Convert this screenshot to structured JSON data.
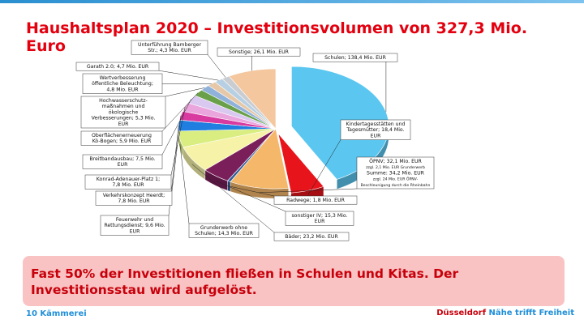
{
  "title": "Haushaltsplan 2020 – Investitionsvolumen von 327,3 Mio. Euro",
  "callout": "Fast 50% der Investitionen fließen in Schulen und Kitas. Der Investitionsstau wird aufgelöst.",
  "footer": {
    "page_label": "10 Kämmerei",
    "city": "Düsseldorf",
    "slogan": "Nähe trifft Freiheit"
  },
  "colors": {
    "accent_red": "#e3000f",
    "accent_blue": "#1f8fd8",
    "callout_bg": "#f9c3c3"
  },
  "chart_data": {
    "type": "pie",
    "unit": "Mio. EUR",
    "slices": [
      {
        "name": "Schulen",
        "value": 138.4,
        "color": "#5bc7f0",
        "label_lines": [
          "Schulen; 138,4 Mio. EUR"
        ]
      },
      {
        "name": "Kindertagesstätten und Tagesmütter",
        "value": 18.4,
        "color": "#e8141b",
        "label_lines": [
          "Kindertagesstätten und",
          "Tagesmütter; 18,4 Mio.",
          "EUR"
        ]
      },
      {
        "name": "ÖPNV",
        "value": 32.1,
        "color": "#f5b86a",
        "label_lines": [
          "ÖPNV; 32,1 Mio. EUR",
          "zzgl. 2,1 Mio. EUR Grunderwerb",
          "Summe: 34,2 Mio. EUR",
          "zzgl. 24 Mio. EUR ÖPNV-",
          "Beschleunigung durch die Rheinbahn"
        ],
        "small_lines": [
          1,
          3,
          4
        ]
      },
      {
        "name": "Radwege",
        "value": 1.8,
        "color": "#2f5e9c",
        "label_lines": [
          "Radwege; 1,8 Mio. EUR"
        ]
      },
      {
        "name": "sonstiger IV",
        "value": 15.3,
        "color": "#7b1f5b",
        "label_lines": [
          "sonstiger IV; 15,3 Mio.",
          "EUR"
        ]
      },
      {
        "name": "Bäder",
        "value": 23.2,
        "color": "#f6f3a9",
        "label_lines": [
          "Bäder; 23,2 Mio. EUR"
        ]
      },
      {
        "name": "Grunderwerb ohne Schulen",
        "value": 14.3,
        "color": "#d9ed80",
        "label_lines": [
          "Grunderwerb ohne",
          "Schulen; 14,3 Mio. EUR"
        ]
      },
      {
        "name": "Feuerwehr und Rettungsdienst",
        "value": 9.6,
        "color": "#1f7ee0",
        "label_lines": [
          "Feuerwehr und",
          "Rettungsdienst; 9,6 Mio.",
          "EUR"
        ]
      },
      {
        "name": "Verkehrskonzept Heerdt",
        "value": 7.8,
        "color": "#d83aa0",
        "label_lines": [
          "Verkehrskonzept Heerdt;",
          "7,8 Mio. EUR"
        ]
      },
      {
        "name": "Konrad-Adenauer-Platz 1",
        "value": 7.8,
        "color": "#e9a5dc",
        "label_lines": [
          "Konrad-Adenauer-Platz 1;",
          "7,8 Mio. EUR"
        ]
      },
      {
        "name": "Breitbandausbau",
        "value": 7.5,
        "color": "#d9c8ef",
        "label_lines": [
          "Breitbandausbau; 7,5 Mio.",
          "EUR"
        ]
      },
      {
        "name": "Oberflächenerneuerung Kö-Bogen",
        "value": 5.9,
        "color": "#6aa04a",
        "label_lines": [
          "Oberflächenerneuerung",
          "Kö-Bogen; 5,9 Mio. EUR"
        ]
      },
      {
        "name": "Hochwasserschutzmaßnahmen und ökologische Verbesserungen",
        "value": 5.3,
        "color": "#8fb1da",
        "label_lines": [
          "Hochwasserschutz-",
          "maßnahmen und",
          "ökologische",
          "Verbesserungen; 5,3 Mio.",
          "EUR"
        ]
      },
      {
        "name": "Wertverbesserung öffentliche Beleuchtung",
        "value": 4.8,
        "color": "#e6c8a8",
        "label_lines": [
          "Wertverbesserung",
          "öffentliche Beleuchtung;",
          "4,8 Mio. EUR"
        ]
      },
      {
        "name": "Garath 2.0",
        "value": 4.7,
        "color": "#b6cfe2",
        "label_lines": [
          "Garath 2.0; 4,7 Mio. EUR"
        ]
      },
      {
        "name": "Unterführung Bamberger Str.",
        "value": 4.3,
        "color": "#c9ccd1",
        "label_lines": [
          "Unterführung Bamberger",
          "Str.; 4,3 Mio. EUR"
        ]
      },
      {
        "name": "Sonstige",
        "value": 26.1,
        "color": "#f4c79e",
        "label_lines": [
          "Sonstige; 26,1 Mio. EUR"
        ]
      }
    ]
  }
}
